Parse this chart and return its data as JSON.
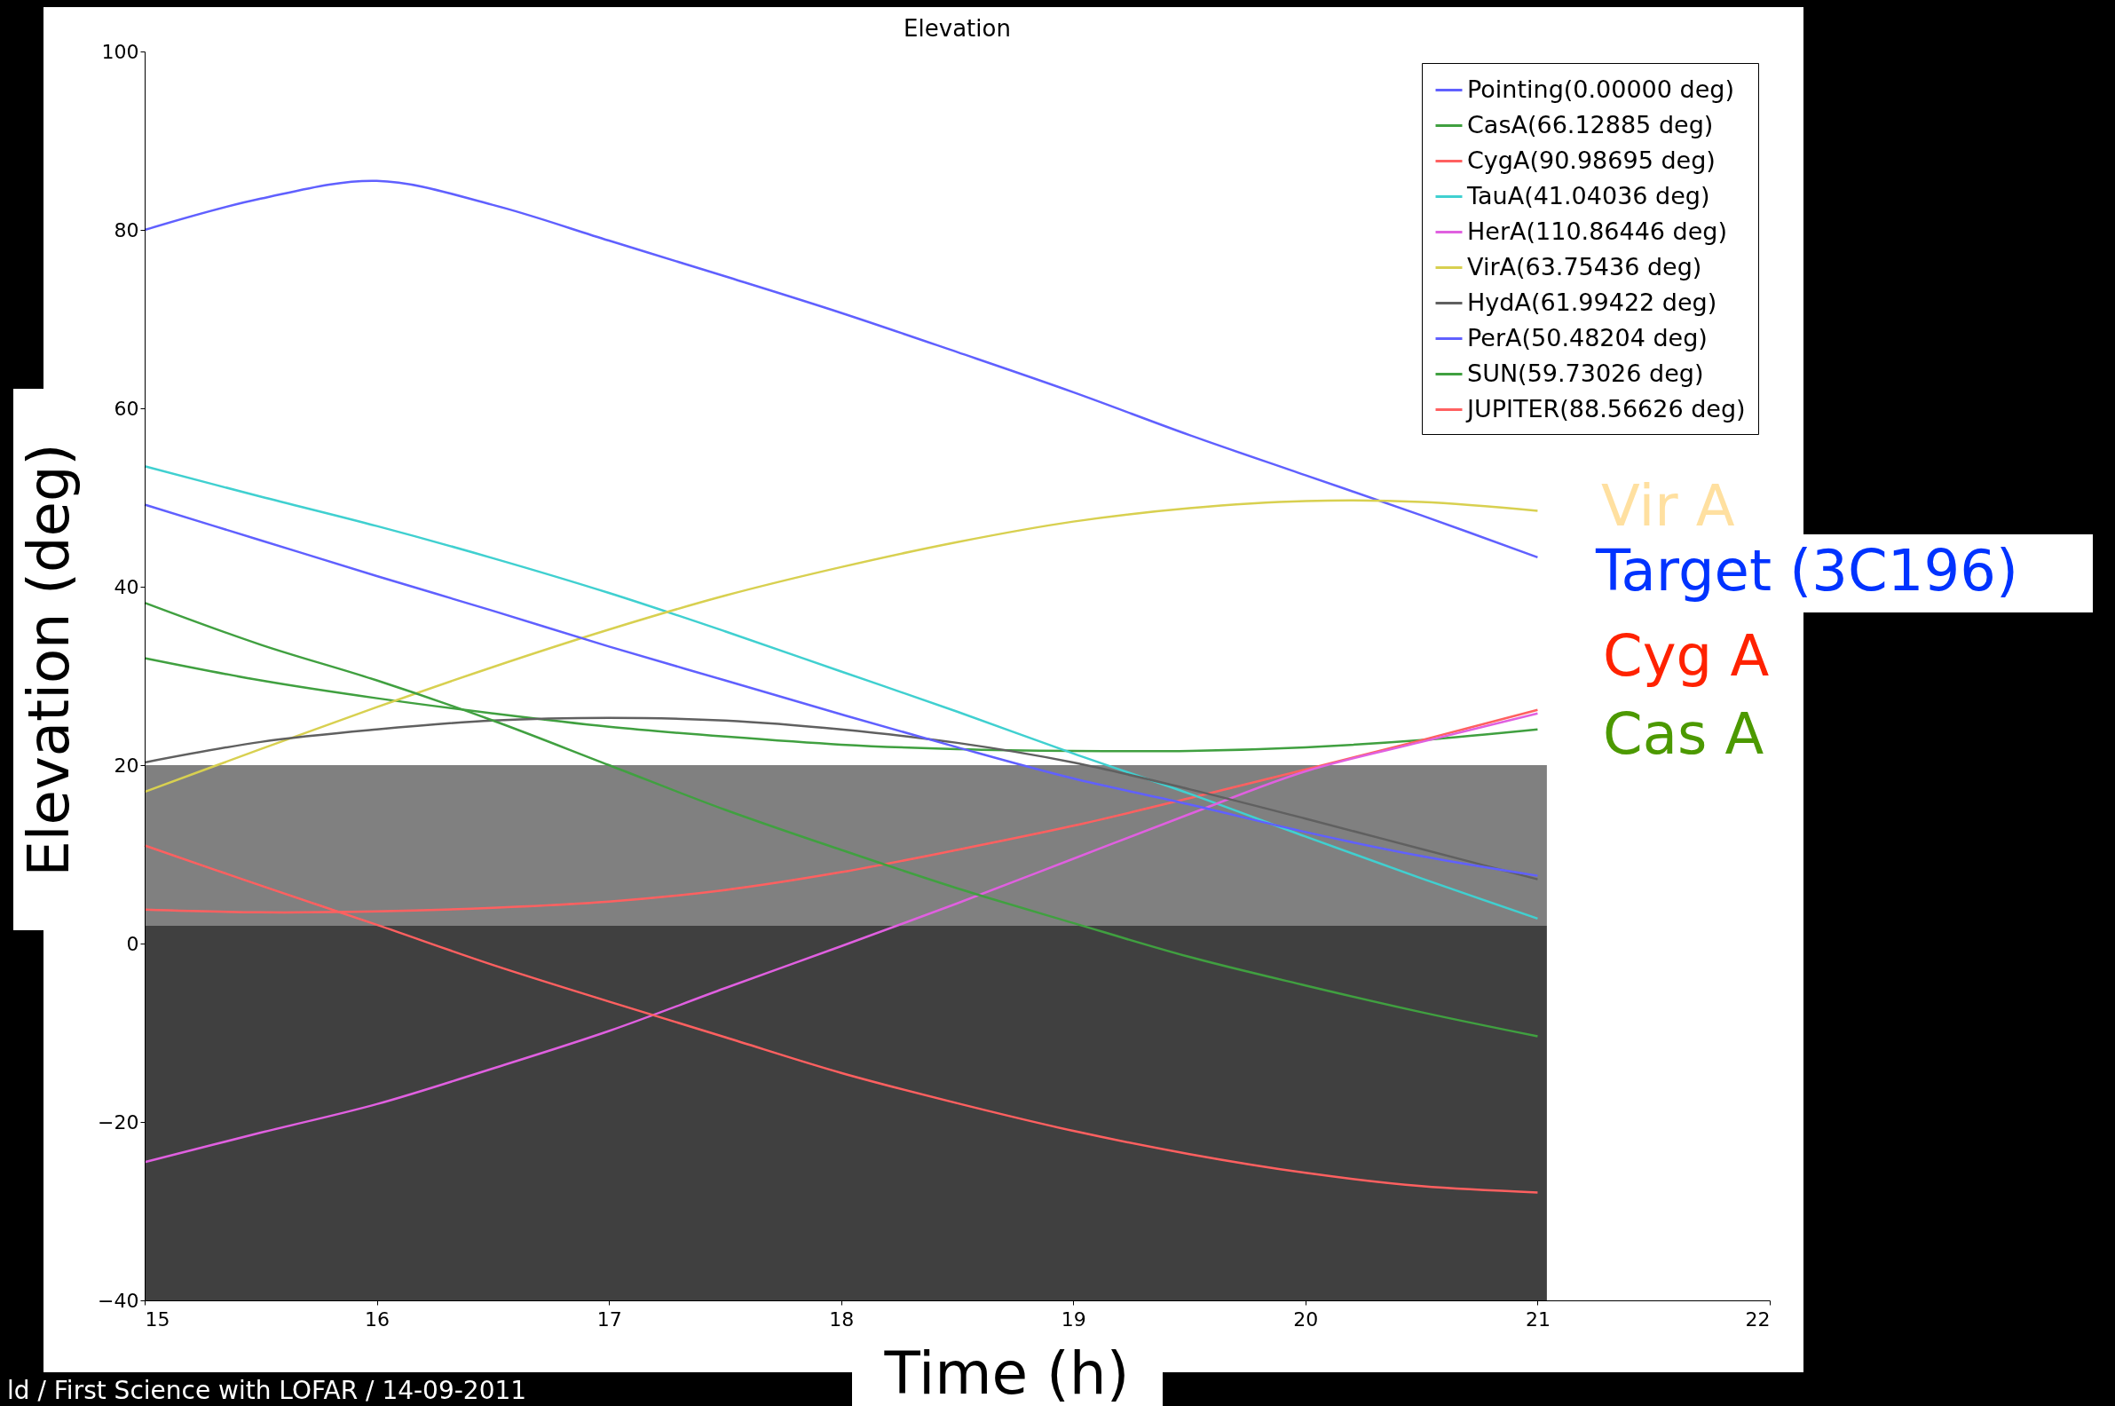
{
  "chart_data": {
    "type": "line",
    "title": "Elevation",
    "xlabel": "Time (h)",
    "ylabel": "Elevation (deg)",
    "x": [
      15,
      15.5,
      16,
      16.5,
      17,
      17.5,
      18,
      18.5,
      19,
      19.5,
      20,
      20.5,
      21
    ],
    "series": [
      {
        "name": "Pointing(0.00000 deg)",
        "color": "#6060ff",
        "values": [
          80,
          83.5,
          85.5,
          82.8,
          78.8,
          74.8,
          70.7,
          66.3,
          61.8,
          57,
          52.5,
          48,
          43.3
        ]
      },
      {
        "name": "CasA(66.12885 deg)",
        "color": "#40a040",
        "values": [
          32,
          29.5,
          27.5,
          25.8,
          24.3,
          23.2,
          22.3,
          21.8,
          21.6,
          21.6,
          22,
          22.8,
          24
        ]
      },
      {
        "name": "CygA(90.98695 deg)",
        "color": "#ff6060",
        "values": [
          3.8,
          3.5,
          3.6,
          4,
          4.7,
          6,
          8,
          10.5,
          13.2,
          16.3,
          19.5,
          22.8,
          26.2
        ]
      },
      {
        "name": "TauA(41.04036 deg)",
        "color": "#40d0d0",
        "values": [
          53.5,
          50.1,
          46.8,
          43.2,
          39.3,
          35,
          30.5,
          26,
          21.3,
          16.8,
          12,
          7.3,
          2.8
        ]
      },
      {
        "name": "HerA(110.86446 deg)",
        "color": "#e060e0",
        "values": [
          -24.5,
          -21.2,
          -18,
          -14,
          -9.8,
          -5,
          -0.3,
          4.5,
          9.5,
          14.5,
          19.3,
          22.6,
          25.8
        ]
      },
      {
        "name": "VirA(63.75436 deg)",
        "color": "#d8d050",
        "values": [
          17,
          21.8,
          26.5,
          31,
          35.2,
          39,
          42.2,
          45,
          47.3,
          48.8,
          49.6,
          49.5,
          48.5
        ]
      },
      {
        "name": "HydA(61.99422 deg)",
        "color": "#606060",
        "values": [
          20.3,
          22.6,
          24,
          25,
          25.3,
          25,
          24,
          22.5,
          20.3,
          17.3,
          14,
          10.6,
          7.2
        ]
      },
      {
        "name": "PerA(50.48204 deg)",
        "color": "#6060ff",
        "values": [
          49.2,
          45.2,
          41.2,
          37.3,
          33.3,
          29.5,
          25.7,
          22,
          18.5,
          15.6,
          12.5,
          9.8,
          7.6
        ]
      },
      {
        "name": "SUN(59.73026 deg)",
        "color": "#40a040",
        "values": [
          38.2,
          33.5,
          29.5,
          25,
          20,
          15,
          10.5,
          6.2,
          2.3,
          -1.5,
          -4.7,
          -7.7,
          -10.4
        ]
      },
      {
        "name": "JUPITER(88.56626 deg)",
        "color": "#ff6060",
        "values": [
          11,
          6.5,
          2.1,
          -2.4,
          -6.5,
          -10.5,
          -14.5,
          -17.9,
          -21,
          -23.6,
          -25.7,
          -27.2,
          -27.9
        ]
      }
    ],
    "bands": [
      {
        "axis": "y",
        "from": -40,
        "to": 2,
        "color": "#404040"
      },
      {
        "axis": "y",
        "from": 2,
        "to": 20,
        "color": "#808080"
      }
    ],
    "annotations": [
      "Vir A",
      "Target (3C196)",
      "Cyg A",
      "Cas A",
      "ld / First Science with LOFAR / 14-09-2011"
    ],
    "xlim": [
      15,
      22
    ],
    "xticks": [
      15,
      16,
      17,
      18,
      19,
      20,
      21,
      22
    ],
    "ylim": [
      -40,
      100
    ],
    "yticks": [
      {
        "value": -40,
        "label": "−40"
      },
      {
        "value": -20,
        "label": "−20"
      },
      0,
      20,
      40,
      60,
      80,
      100
    ],
    "grid": false,
    "legend": "top right",
    "line_style": "solid",
    "marker": "none"
  }
}
